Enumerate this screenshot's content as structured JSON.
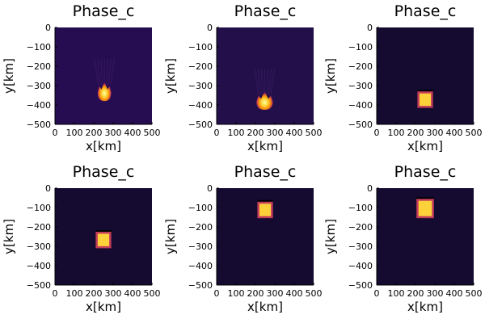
{
  "chart_data": [
    {
      "type": "heatmap",
      "title": "Phase_c",
      "xlabel": "x[km]",
      "ylabel": "y[km]",
      "xlim": [
        0,
        500
      ],
      "ylim": [
        -500,
        0
      ],
      "x_ticks": [
        "0",
        "100",
        "200",
        "300",
        "400",
        "500"
      ],
      "y_ticks": [
        "0",
        "−100",
        "−200",
        "−300",
        "−400",
        "−500"
      ],
      "background": "#260d51",
      "feature": {
        "shape": "plume",
        "x_range": [
          220,
          290
        ],
        "y_range": [
          -380,
          -280
        ]
      }
    },
    {
      "type": "heatmap",
      "title": "Phase_c",
      "xlabel": "x[km]",
      "ylabel": "y[km]",
      "xlim": [
        0,
        500
      ],
      "ylim": [
        -500,
        0
      ],
      "x_ticks": [
        "0",
        "100",
        "200",
        "300",
        "400",
        "500"
      ],
      "y_ticks": [
        "0",
        "−100",
        "−200",
        "−300",
        "−400",
        "−500"
      ],
      "background": "#23104a",
      "feature": {
        "shape": "plume",
        "x_range": [
          205,
          290
        ],
        "y_range": [
          -425,
          -330
        ]
      }
    },
    {
      "type": "heatmap",
      "title": "Phase_c",
      "xlabel": "x[km]",
      "ylabel": "y[km]",
      "xlim": [
        0,
        500
      ],
      "ylim": [
        -500,
        0
      ],
      "x_ticks": [
        "0",
        "100",
        "200",
        "300",
        "400",
        "500"
      ],
      "y_ticks": [
        "0",
        "−100",
        "−200",
        "−300",
        "−400",
        "−500"
      ],
      "background": "#150b30",
      "feature": {
        "shape": "block",
        "x_range": [
          210,
          290
        ],
        "y_range": [
          -415,
          -330
        ]
      }
    },
    {
      "type": "heatmap",
      "title": "Phase_c",
      "xlabel": "x[km]",
      "ylabel": "y[km]",
      "xlim": [
        0,
        500
      ],
      "ylim": [
        -500,
        0
      ],
      "x_ticks": [
        "0",
        "100",
        "200",
        "300",
        "400",
        "500"
      ],
      "y_ticks": [
        "0",
        "−100",
        "−200",
        "−300",
        "−400",
        "−500"
      ],
      "background": "#150b30",
      "feature": {
        "shape": "block",
        "x_range": [
          210,
          290
        ],
        "y_range": [
          -310,
          -225
        ]
      }
    },
    {
      "type": "heatmap",
      "title": "Phase_c",
      "xlabel": "x[km]",
      "ylabel": "y[km]",
      "xlim": [
        0,
        500
      ],
      "ylim": [
        -500,
        0
      ],
      "x_ticks": [
        "0",
        "100",
        "200",
        "300",
        "400",
        "500"
      ],
      "y_ticks": [
        "0",
        "−100",
        "−200",
        "−300",
        "−400",
        "−500"
      ],
      "background": "#150b30",
      "feature": {
        "shape": "block",
        "x_range": [
          210,
          290
        ],
        "y_range": [
          -155,
          -70
        ]
      }
    },
    {
      "type": "heatmap",
      "title": "Phase_c",
      "xlabel": "x[km]",
      "ylabel": "y[km]",
      "xlim": [
        0,
        500
      ],
      "ylim": [
        -500,
        0
      ],
      "x_ticks": [
        "0",
        "100",
        "200",
        "300",
        "400",
        "500"
      ],
      "y_ticks": [
        "0",
        "−100",
        "−200",
        "−300",
        "−400",
        "−500"
      ],
      "background": "#150b30",
      "feature": {
        "shape": "block",
        "x_range": [
          205,
          295
        ],
        "y_range": [
          -155,
          -55
        ]
      }
    }
  ]
}
